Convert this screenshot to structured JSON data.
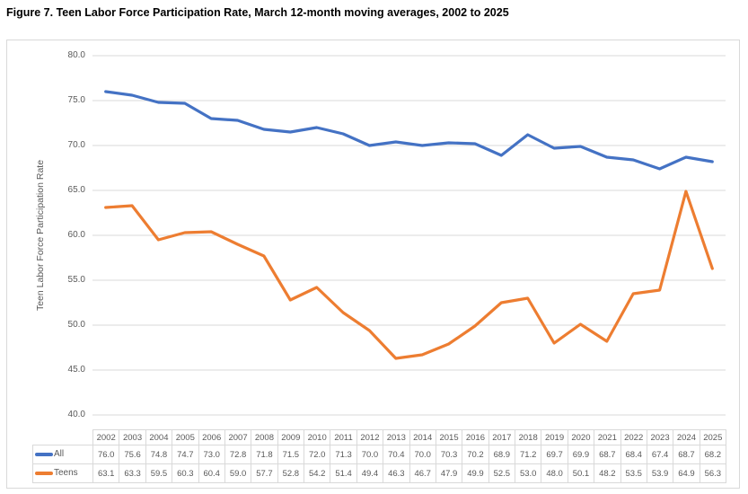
{
  "figure_title": "Figure 7. Teen Labor Force Participation Rate, March 12-month moving averages, 2002 to 2025",
  "colors": {
    "all_series": "#4472C4",
    "teens_series": "#ED7D31",
    "grid": "#D9D9D9",
    "frame_border": "#D9D9D9",
    "axis_text": "#595959",
    "table_text": "#595959",
    "title_text": "#000000"
  },
  "chart_data": {
    "type": "line",
    "title": "Figure 7. Teen Labor Force Participation Rate, March 12-month moving averages, 2002 to 2025",
    "xlabel": "",
    "ylabel": "Teen Labor Force Participation Rate",
    "ylim": [
      40.0,
      80.0
    ],
    "ytick_step": 5.0,
    "grid": true,
    "legend_position": "table-left",
    "categories": [
      2002,
      2003,
      2004,
      2005,
      2006,
      2007,
      2008,
      2009,
      2010,
      2011,
      2012,
      2013,
      2014,
      2015,
      2016,
      2017,
      2018,
      2019,
      2020,
      2021,
      2022,
      2023,
      2024,
      2025
    ],
    "series": [
      {
        "name": "All",
        "color": "#4472C4",
        "values": [
          76.0,
          75.6,
          74.8,
          74.7,
          73.0,
          72.8,
          71.8,
          71.5,
          72.0,
          71.3,
          70.0,
          70.4,
          70.0,
          70.3,
          70.2,
          68.9,
          71.2,
          69.7,
          69.9,
          68.7,
          68.4,
          67.4,
          68.7,
          68.2
        ]
      },
      {
        "name": "Teens",
        "color": "#ED7D31",
        "values": [
          63.1,
          63.3,
          59.5,
          60.3,
          60.4,
          59.0,
          57.7,
          52.8,
          54.2,
          51.4,
          49.4,
          46.3,
          46.7,
          47.9,
          49.9,
          52.5,
          53.0,
          48.0,
          50.1,
          48.2,
          53.5,
          53.9,
          64.9,
          56.3
        ]
      }
    ]
  }
}
